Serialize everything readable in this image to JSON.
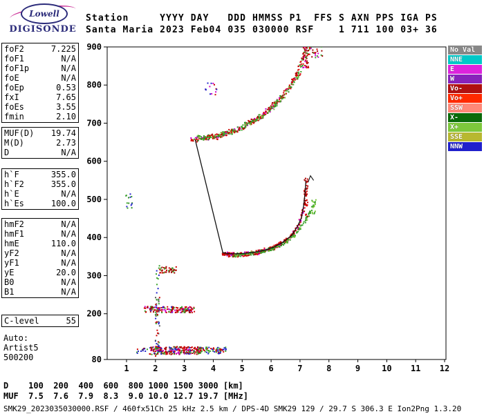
{
  "logo": {
    "line1": "Lowell",
    "line2": "DIGISONDE"
  },
  "header": {
    "line1": "Station     YYYY DAY   DDD HMMSS P1  FFS S AXN PPS IGA PS",
    "line2": "Santa Maria 2023 Feb04 035 030000 RSF    1 711 100 03+ 36"
  },
  "params": {
    "groups": [
      {
        "border": true,
        "rows": [
          {
            "label": "foF2",
            "value": "7.225"
          },
          {
            "label": "foF1",
            "value": "N/A"
          },
          {
            "label": "foF1p",
            "value": "N/A"
          },
          {
            "label": "foE",
            "value": "N/A"
          },
          {
            "label": "foEp",
            "value": "0.53"
          },
          {
            "label": "fxI",
            "value": "7.65"
          },
          {
            "label": "foEs",
            "value": "3.55"
          },
          {
            "label": "fmin",
            "value": "2.10"
          }
        ]
      },
      {
        "border": true,
        "rows": [
          {
            "label": "MUF(D)",
            "value": "19.74"
          },
          {
            "label": "M(D)",
            "value": "2.73"
          },
          {
            "label": "D",
            "value": "N/A"
          }
        ]
      },
      {
        "border": true,
        "rows": [
          {
            "label": "h`F",
            "value": "355.0"
          },
          {
            "label": "h`F2",
            "value": "355.0"
          },
          {
            "label": "h`E",
            "value": "N/A"
          },
          {
            "label": "h`Es",
            "value": "100.0"
          }
        ]
      },
      {
        "border": true,
        "rows": [
          {
            "label": "hmF2",
            "value": "N/A"
          },
          {
            "label": "hmF1",
            "value": "N/A"
          },
          {
            "label": "hmE",
            "value": "110.0"
          },
          {
            "label": "yF2",
            "value": "N/A"
          },
          {
            "label": "yF1",
            "value": "N/A"
          },
          {
            "label": "yE",
            "value": "20.0"
          },
          {
            "label": "B0",
            "value": "N/A"
          },
          {
            "label": "B1",
            "value": "N/A"
          }
        ]
      },
      {
        "border": true,
        "rows": [
          {
            "label": "C-level",
            "value": "55"
          }
        ]
      },
      {
        "border": false,
        "rows": [
          {
            "label": "Auto:",
            "value": ""
          },
          {
            "label": "Artist5",
            "value": ""
          },
          {
            "label": "500200",
            "value": ""
          }
        ]
      }
    ]
  },
  "legend": [
    {
      "label": "No Val",
      "color": "#888888"
    },
    {
      "label": "NNE",
      "color": "#00c8c8"
    },
    {
      "label": "E",
      "color": "#dd22dd"
    },
    {
      "label": "W",
      "color": "#8822bb"
    },
    {
      "label": "Vo-",
      "color": "#b01010"
    },
    {
      "label": "Vo+",
      "color": "#ff2a00"
    },
    {
      "label": "SSW",
      "color": "#ff8878"
    },
    {
      "label": "X-",
      "color": "#0a6a0a"
    },
    {
      "label": "X+",
      "color": "#7dc83c"
    },
    {
      "label": "SSE",
      "color": "#b8b830"
    },
    {
      "label": "NNW",
      "color": "#2020cc"
    }
  ],
  "footer": {
    "d_row": "D    100  200  400  600  800 1000 1500 3000 [km]",
    "muf_row": "MUF  7.5  7.6  7.9  8.3  9.0 10.0 12.7 19.7 [MHz]",
    "info": "SMK29_2023035030000.RSF / 460fx51Ch 25 kHz 2.5 km / DPS-4D SMK29 129 / 29.7 S 306.3 E Ion2Png 1.3.20"
  },
  "chart_data": {
    "type": "scatter",
    "x_range": [
      1,
      12
    ],
    "y_range": [
      80,
      900
    ],
    "x_ticks": [
      1,
      2,
      3,
      4,
      5,
      6,
      7,
      8,
      9,
      10,
      11,
      12
    ],
    "y_ticks": [
      900,
      800,
      700,
      600,
      500,
      400,
      300,
      200,
      80
    ],
    "key_values": {
      "foF2": 7.225,
      "fxI": 7.65,
      "hF": 355.0,
      "hEs": 100.0,
      "fmin": 2.1
    },
    "profile_line": [
      [
        3.38,
        655
      ],
      [
        4.33,
        360
      ],
      [
        4.6,
        357
      ],
      [
        5.0,
        358
      ],
      [
        5.4,
        361
      ],
      [
        5.8,
        367
      ],
      [
        6.1,
        375
      ],
      [
        6.4,
        387
      ],
      [
        6.7,
        405
      ],
      [
        6.9,
        427
      ],
      [
        7.05,
        452
      ],
      [
        7.13,
        485
      ],
      [
        7.18,
        520
      ],
      [
        7.2,
        548
      ]
    ],
    "profile_hook": [
      [
        7.28,
        545
      ],
      [
        7.36,
        562
      ],
      [
        7.47,
        550
      ]
    ],
    "traces": [
      {
        "name": "f-trace-o",
        "type": "curve",
        "f_range": [
          4.33,
          7.23
        ],
        "control": [
          [
            4.33,
            357
          ],
          [
            4.6,
            355
          ],
          [
            4.9,
            355
          ],
          [
            5.2,
            357
          ],
          [
            5.5,
            360
          ],
          [
            5.8,
            366
          ],
          [
            6.1,
            374
          ],
          [
            6.4,
            386
          ],
          [
            6.7,
            404
          ],
          [
            6.9,
            425
          ],
          [
            7.05,
            450
          ],
          [
            7.15,
            480
          ],
          [
            7.2,
            515
          ],
          [
            7.23,
            552
          ]
        ],
        "count": 330,
        "jitter_f": 0.035,
        "jitter_h": 7,
        "colors": [
          "#cc0000",
          "#cc0000",
          "#cc0000",
          "#e01010",
          "#a00000",
          "#cc00cc"
        ]
      },
      {
        "name": "f-trace-x",
        "type": "curve",
        "f_range": [
          4.7,
          7.5
        ],
        "control": [
          [
            4.7,
            354
          ],
          [
            5.1,
            356
          ],
          [
            5.4,
            359
          ],
          [
            5.7,
            363
          ],
          [
            6.0,
            369
          ],
          [
            6.3,
            378
          ],
          [
            6.6,
            392
          ],
          [
            6.9,
            412
          ],
          [
            7.1,
            434
          ],
          [
            7.3,
            458
          ],
          [
            7.42,
            478
          ],
          [
            7.5,
            497
          ]
        ],
        "count": 150,
        "jitter_f": 0.035,
        "jitter_h": 6,
        "colors": [
          "#3ba42c",
          "#3ba42c",
          "#2e8f22",
          "#7dc83c"
        ]
      },
      {
        "name": "f2-trace-o",
        "type": "curve",
        "f_range": [
          3.22,
          7.25
        ],
        "control": [
          [
            3.22,
            657
          ],
          [
            3.5,
            658
          ],
          [
            3.8,
            661
          ],
          [
            4.1,
            665
          ],
          [
            4.4,
            671
          ],
          [
            4.7,
            679
          ],
          [
            5.0,
            689
          ],
          [
            5.3,
            701
          ],
          [
            5.6,
            716
          ],
          [
            5.9,
            734
          ],
          [
            6.2,
            757
          ],
          [
            6.5,
            783
          ],
          [
            6.75,
            812
          ],
          [
            6.95,
            842
          ],
          [
            7.1,
            870
          ],
          [
            7.2,
            895
          ],
          [
            7.25,
            908
          ]
        ],
        "count": 300,
        "jitter_f": 0.04,
        "jitter_h": 9,
        "colors": [
          "#cc0000",
          "#cc0000",
          "#e01010",
          "#a00000",
          "#cc00cc",
          "#3ba42c"
        ]
      },
      {
        "name": "f2-trace-x",
        "type": "curve",
        "f_range": [
          3.45,
          7.45
        ],
        "control": [
          [
            3.45,
            661
          ],
          [
            3.8,
            663
          ],
          [
            4.1,
            667
          ],
          [
            4.4,
            673
          ],
          [
            4.7,
            681
          ],
          [
            5.0,
            691
          ],
          [
            5.35,
            703
          ],
          [
            5.7,
            719
          ],
          [
            6.05,
            741
          ],
          [
            6.4,
            768
          ],
          [
            6.7,
            796
          ],
          [
            7.0,
            832
          ],
          [
            7.2,
            870
          ],
          [
            7.35,
            902
          ],
          [
            7.45,
            915
          ]
        ],
        "count": 220,
        "jitter_f": 0.04,
        "jitter_h": 9,
        "colors": [
          "#3ba42c",
          "#3ba42c",
          "#2e8f22",
          "#7dc83c",
          "#cc0000"
        ]
      },
      {
        "name": "es-band",
        "type": "band",
        "f_range": [
          1.8,
          3.6
        ],
        "h_range": [
          93,
          114
        ],
        "count": 260,
        "colors": [
          "#cc0000",
          "#cc0000",
          "#2222cc",
          "#3ba42c",
          "#cc00cc",
          "#a00000",
          "#2e8f22"
        ]
      },
      {
        "name": "es-band-tail",
        "type": "band",
        "f_range": [
          3.5,
          4.45
        ],
        "h_range": [
          95,
          112
        ],
        "count": 70,
        "colors": [
          "#cc0000",
          "#3ba42c",
          "#2222cc"
        ]
      },
      {
        "name": "es-band-left-sparse",
        "type": "band",
        "f_range": [
          1.3,
          1.8
        ],
        "h_range": [
          96,
          110
        ],
        "count": 14,
        "colors": [
          "#cc0000",
          "#2222cc",
          "#3ba42c"
        ]
      },
      {
        "name": "es2-band",
        "type": "band",
        "f_range": [
          1.6,
          3.35
        ],
        "h_range": [
          203,
          219
        ],
        "count": 150,
        "colors": [
          "#cc0000",
          "#cc0000",
          "#3ba42c",
          "#2222cc",
          "#a00000",
          "#cc00cc"
        ]
      },
      {
        "name": "es3-blob",
        "type": "band",
        "f_range": [
          2.15,
          2.72
        ],
        "h_range": [
          307,
          324
        ],
        "count": 42,
        "colors": [
          "#cc0000",
          "#3ba42c",
          "#a00000"
        ]
      },
      {
        "name": "noise-column-2mhz",
        "type": "band",
        "f_range": [
          2.0,
          2.16
        ],
        "h_range": [
          85,
          245
        ],
        "count": 46,
        "colors": [
          "#2222cc",
          "#3ba42c",
          "#555555",
          "#cc0000"
        ]
      },
      {
        "name": "noise-column-2mhz-upper",
        "type": "band",
        "f_range": [
          2.02,
          2.14
        ],
        "h_range": [
          245,
          330
        ],
        "count": 10,
        "colors": [
          "#2222cc",
          "#3ba42c"
        ]
      },
      {
        "name": "noise-left-500km",
        "type": "band",
        "f_range": [
          0.98,
          1.2
        ],
        "h_range": [
          475,
          515
        ],
        "count": 14,
        "colors": [
          "#3ba42c",
          "#2e8f22",
          "#2222cc"
        ]
      },
      {
        "name": "spread-cluster-780km",
        "type": "band",
        "f_range": [
          3.7,
          4.15
        ],
        "h_range": [
          772,
          806
        ],
        "count": 14,
        "colors": [
          "#cc00cc",
          "#2222cc",
          "#cc0000"
        ]
      },
      {
        "name": "top-edge-spread",
        "type": "band",
        "f_range": [
          7.25,
          7.8
        ],
        "h_range": [
          872,
          905
        ],
        "count": 26,
        "colors": [
          "#cc0000",
          "#cc00cc",
          "#3ba42c",
          "#a00000"
        ]
      },
      {
        "name": "f-asymptote",
        "type": "band",
        "f_range": [
          7.14,
          7.27
        ],
        "h_range": [
          455,
          558
        ],
        "count": 45,
        "colors": [
          "#cc0000",
          "#e01010",
          "#a00000"
        ]
      },
      {
        "name": "f-x-asymptote",
        "type": "band",
        "f_range": [
          7.4,
          7.55
        ],
        "h_range": [
          462,
          500
        ],
        "count": 18,
        "colors": [
          "#3ba42c",
          "#7dc83c"
        ]
      },
      {
        "name": "f2-asymptote",
        "type": "band",
        "f_range": [
          7.1,
          7.3
        ],
        "h_range": [
          840,
          900
        ],
        "count": 30,
        "colors": [
          "#cc0000",
          "#a00000",
          "#cc00cc"
        ]
      }
    ]
  }
}
